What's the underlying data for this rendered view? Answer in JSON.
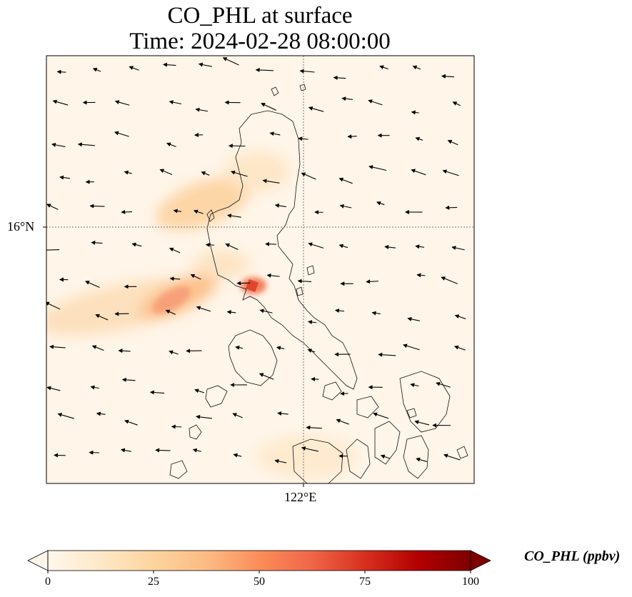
{
  "title": {
    "line1": "CO_PHL at surface",
    "line2": "Time: 2024-02-28 08:00:00"
  },
  "map": {
    "variable": "CO_PHL",
    "level": "surface",
    "lat_tick_label": "16°N",
    "lon_tick_label": "122°E",
    "gridline_style": "dotted",
    "features": [
      "concentration field",
      "coastlines",
      "wind vectors"
    ],
    "hotspots": [
      {
        "location": "Metro Manila / Manila Bay",
        "approx_ppbv": 55
      },
      {
        "location": "West of Luzon, offshore plume",
        "approx_ppbv": 40
      },
      {
        "location": "Central Luzon plume",
        "approx_ppbv": 20
      }
    ],
    "wind_direction_dominant": "from east (easterly flow)"
  },
  "colorbar": {
    "label": "CO_PHL (ppbv)",
    "ticks": [
      "0",
      "25",
      "50",
      "75",
      "100"
    ],
    "min": 0,
    "max": 100,
    "extend": "both",
    "colormap": "OrRd",
    "colors": [
      "#fff7ec",
      "#fee8c8",
      "#fdd49e",
      "#fdbb84",
      "#fc8d59",
      "#ef6548",
      "#d7301f",
      "#b30000",
      "#7f0000"
    ]
  }
}
